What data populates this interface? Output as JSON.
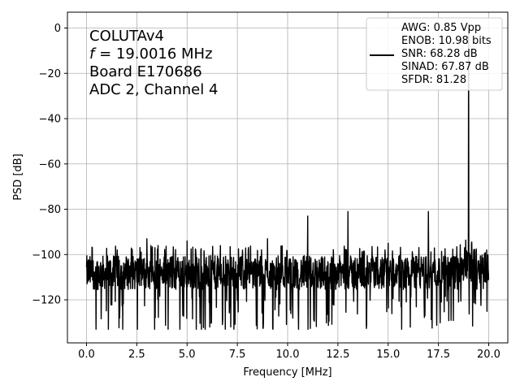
{
  "chart_data": {
    "type": "line",
    "xlabel": "Frequency [MHz]",
    "ylabel": "PSD [dB]",
    "xlim": [
      -0.95,
      20.95
    ],
    "ylim": [
      -139,
      7
    ],
    "xticks": [
      0.0,
      2.5,
      5.0,
      7.5,
      10.0,
      12.5,
      15.0,
      17.5,
      20.0
    ],
    "xtick_labels": [
      "0.0",
      "2.5",
      "5.0",
      "7.5",
      "10.0",
      "12.5",
      "15.0",
      "17.5",
      "20.0"
    ],
    "yticks": [
      0,
      -20,
      -40,
      -60,
      -80,
      -100,
      -120
    ],
    "ytick_labels": [
      "0",
      "−20",
      "−40",
      "−60",
      "−80",
      "−100",
      "−120"
    ],
    "grid": true,
    "line_color": "#000000",
    "annotation": {
      "line1": "COLUTAv4",
      "line2_var": "f",
      "line2_rest": " = 19.0016 MHz",
      "line3": "Board E170686",
      "line4": "ADC 2, Channel 4"
    },
    "legend": {
      "position": "upper right",
      "lines": [
        "AWG: 0.85 Vpp",
        "ENOB: 10.98 bits",
        "SNR: 68.28 dB",
        "SINAD: 67.87 dB",
        "SFDR: 81.28"
      ]
    },
    "series": [
      {
        "x_start": 0.0,
        "x_end": 20.0,
        "noise_floor_db": -108,
        "noise_min_db": -133,
        "noise_max_db": -96,
        "spurs": [
          {
            "x": 3.0,
            "y": -93
          },
          {
            "x": 5.0,
            "y": -94
          },
          {
            "x": 9.0,
            "y": -93
          },
          {
            "x": 11.0,
            "y": -83
          },
          {
            "x": 13.0,
            "y": -81
          },
          {
            "x": 15.0,
            "y": -95
          },
          {
            "x": 17.0,
            "y": -81
          },
          {
            "x": 18.8,
            "y": -97
          },
          {
            "x": 19.0016,
            "y": 0
          }
        ]
      }
    ]
  }
}
